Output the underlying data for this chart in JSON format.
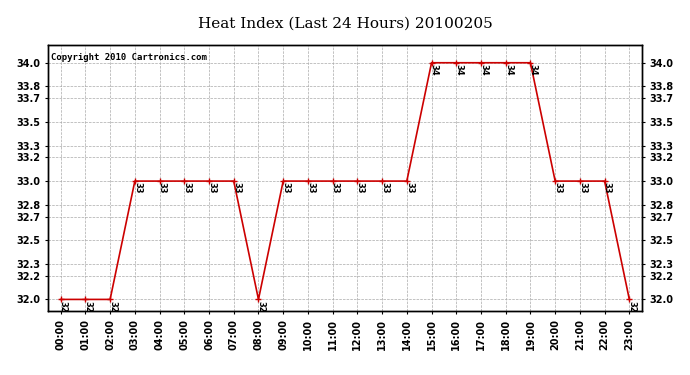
{
  "title": "Heat Index (Last 24 Hours) 20100205",
  "copyright": "Copyright 2010 Cartronics.com",
  "hours": [
    0,
    1,
    2,
    3,
    4,
    5,
    6,
    7,
    8,
    9,
    10,
    11,
    12,
    13,
    14,
    15,
    16,
    17,
    18,
    19,
    20,
    21,
    22,
    23
  ],
  "values": [
    32.0,
    32.0,
    32.0,
    33.0,
    33.0,
    33.0,
    33.0,
    33.0,
    32.0,
    33.0,
    33.0,
    33.0,
    33.0,
    33.0,
    33.0,
    34.0,
    34.0,
    34.0,
    34.0,
    34.0,
    33.0,
    33.0,
    33.0,
    32.0
  ],
  "line_color": "#cc0000",
  "bg_color": "#ffffff",
  "grid_color": "#aaaaaa",
  "ylim": [
    31.9,
    34.15
  ],
  "yticks": [
    32.0,
    32.2,
    32.3,
    32.5,
    32.7,
    32.8,
    33.0,
    33.2,
    33.3,
    33.5,
    33.7,
    33.8,
    34.0
  ],
  "title_fontsize": 11,
  "label_fontsize": 7,
  "annotation_fontsize": 6,
  "copyright_fontsize": 6.5
}
